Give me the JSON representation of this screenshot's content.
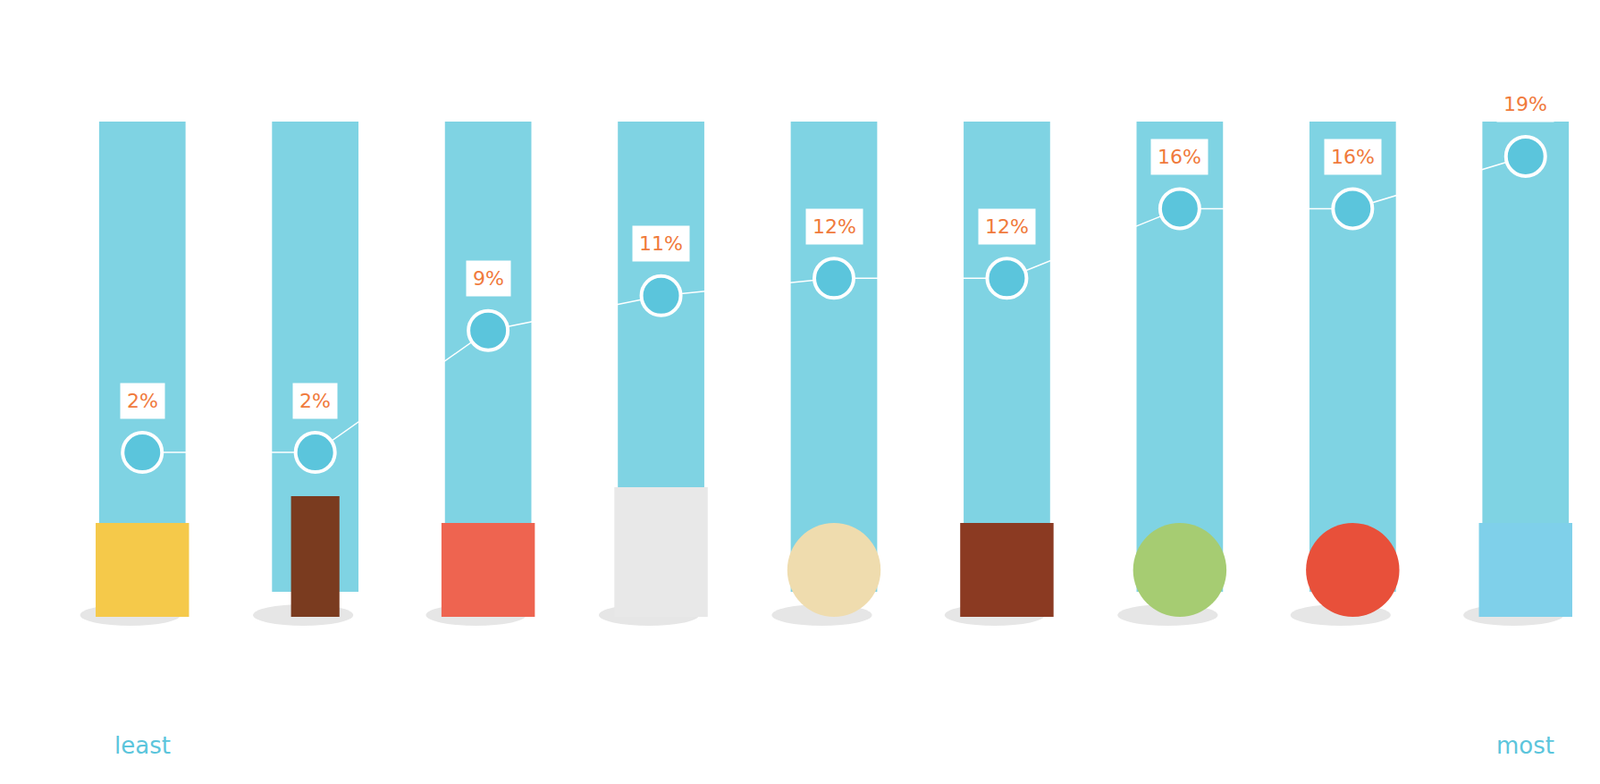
{
  "chart_data": {
    "type": "scatter",
    "categories": [
      null,
      null,
      null,
      null,
      null,
      null,
      null,
      null,
      null
    ],
    "values": [
      2,
      2,
      9,
      11,
      12,
      12,
      16,
      16,
      19
    ],
    "value_labels": [
      "2%",
      "2%",
      "9%",
      "11%",
      "12%",
      "12%",
      "16%",
      "16%",
      "19%"
    ],
    "data_labels": true,
    "color": "#5bc5dc",
    "marker": "circle",
    "ylim": [
      0,
      21
    ],
    "tick_labels": false,
    "grid": false,
    "annotations": [
      "least",
      "most"
    ]
  }
}
